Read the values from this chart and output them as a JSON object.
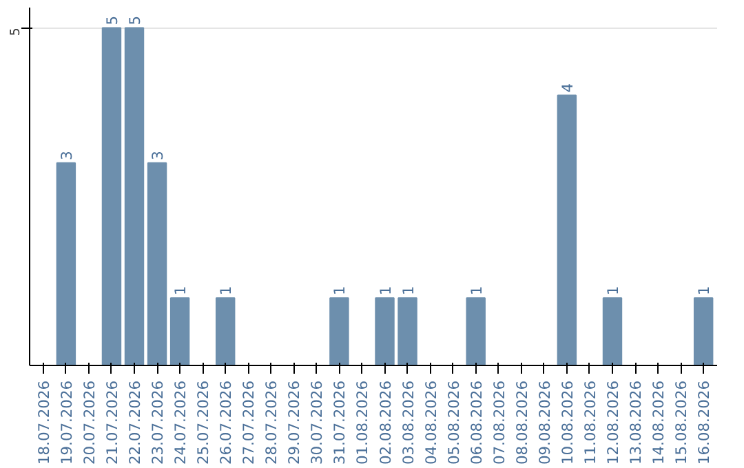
{
  "chart_data": {
    "type": "bar",
    "categories": [
      "18.07.2026",
      "19.07.2026",
      "20.07.2026",
      "21.07.2026",
      "22.07.2026",
      "23.07.2026",
      "24.07.2026",
      "25.07.2026",
      "26.07.2026",
      "27.07.2026",
      "28.07.2026",
      "29.07.2026",
      "30.07.2026",
      "31.07.2026",
      "01.08.2026",
      "02.08.2026",
      "03.08.2026",
      "04.08.2026",
      "05.08.2026",
      "06.08.2026",
      "07.08.2026",
      "08.08.2026",
      "09.08.2026",
      "10.08.2026",
      "11.08.2026",
      "12.08.2026",
      "13.08.2026",
      "14.08.2026",
      "15.08.2026",
      "16.08.2026"
    ],
    "values": [
      0,
      3,
      0,
      5,
      5,
      3,
      1,
      0,
      1,
      0,
      0,
      0,
      0,
      1,
      0,
      1,
      1,
      0,
      0,
      1,
      0,
      0,
      0,
      4,
      0,
      1,
      0,
      0,
      0,
      1
    ],
    "value_labels": [
      null,
      "3",
      null,
      "5",
      "5",
      "3",
      "1",
      null,
      "1",
      null,
      null,
      null,
      null,
      "1",
      null,
      "1",
      "1",
      null,
      null,
      "1",
      null,
      null,
      null,
      "4",
      null,
      "1",
      null,
      null,
      null,
      "1"
    ],
    "color": "#6d8fad",
    "ylim": [
      0,
      5.3
    ],
    "yticks": [
      5
    ],
    "grid": "y"
  }
}
